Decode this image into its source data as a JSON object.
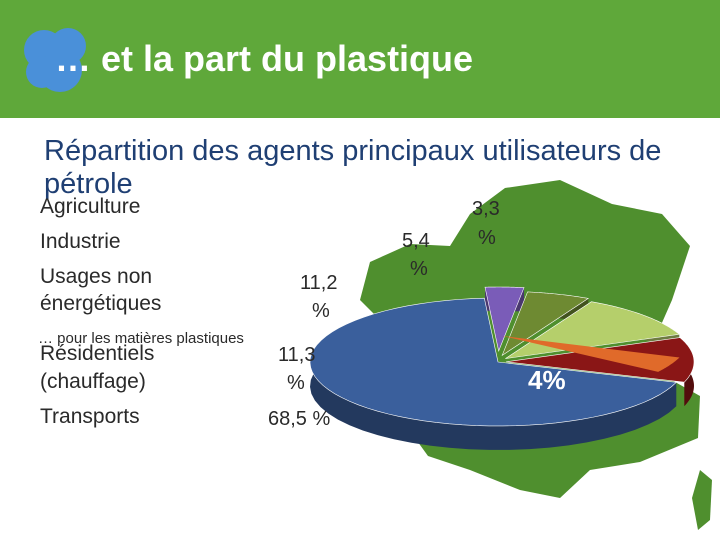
{
  "header": {
    "title": "… et la part du plastique",
    "color": "#5fa83a"
  },
  "chart_data": {
    "type": "pie",
    "title": "Répartition des agents principaux utilisateurs de pétrole",
    "categories": [
      "Agriculture",
      "Industrie",
      "Usages non énergétiques",
      "Résidentiels (chauffage)",
      "Transports"
    ],
    "labels": {
      "agriculture": "Agriculture",
      "industrie": "Industrie",
      "usages_line1": "Usages non",
      "usages_line2": "énergétiques",
      "residentiels_line1": "Résidentiels",
      "residentiels_line2": "(chauffage)",
      "transports": "Transports"
    },
    "values": [
      3.3,
      5.4,
      11.2,
      11.3,
      68.5
    ],
    "value_labels": {
      "agriculture_num": "3,3",
      "agriculture_unit": "%",
      "industrie_num": "5,4",
      "industrie_unit": "%",
      "usages_num": "11,2",
      "usages_unit": "%",
      "residentiels_num": "11,3",
      "residentiels_unit": "%",
      "transports": "68,5 %"
    },
    "annotation": "… pour les matières plastiques",
    "plastic_share": "4%",
    "colors": {
      "transports": "#3a5f9c",
      "residentiels": "#8a1616",
      "usages": "#b5cf6b",
      "industrie": "#6e8a32",
      "agriculture_slice": "#7a5cb8",
      "plastique_slice": "#e06a2a",
      "map": "#4f8f2e"
    }
  }
}
